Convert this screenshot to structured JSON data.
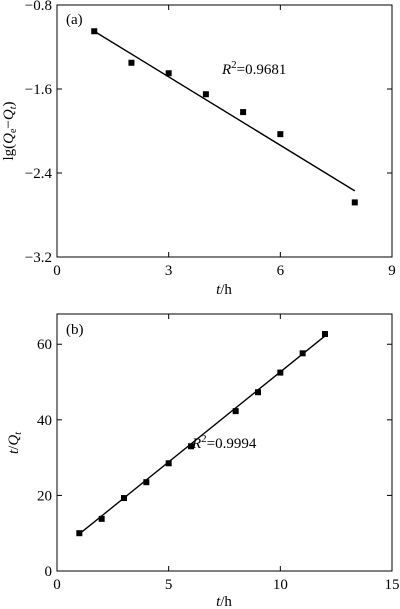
{
  "chart_data": [
    {
      "type": "scatter",
      "panel_label": "(a)",
      "xlabel": "t/h",
      "xlabel_italic": "t",
      "xlabel_rest": "/h",
      "ylabel": "lg(Qe−Qt)",
      "ylabel_parts": {
        "prefix": "lg(",
        "q1": "Q",
        "sub1": "e",
        "minus": "−",
        "q2": "Q",
        "sub2": "t",
        "suffix": ")"
      },
      "xlim": [
        0,
        9
      ],
      "ylim": [
        -3.2,
        -0.8
      ],
      "xticks": [
        0,
        3,
        6,
        9
      ],
      "xtick_labels": [
        "0",
        "3",
        "6",
        "9"
      ],
      "yticks": [
        -3.2,
        -2.4,
        -1.6,
        -0.8
      ],
      "ytick_labels": [
        "−3.2",
        "−2.4",
        "−1.6",
        "−0.8"
      ],
      "annotation": {
        "r2_italic": "R",
        "r2_sup": "2",
        "r2_value": "=0.9681"
      },
      "series": [
        {
          "marker": "square",
          "points": [
            {
              "x": 1,
              "y": -1.05
            },
            {
              "x": 2,
              "y": -1.35
            },
            {
              "x": 3,
              "y": -1.45
            },
            {
              "x": 4,
              "y": -1.65
            },
            {
              "x": 5,
              "y": -1.82
            },
            {
              "x": 6,
              "y": -2.03
            },
            {
              "x": 8,
              "y": -2.68
            }
          ]
        }
      ],
      "fit_line": {
        "x": [
          1,
          8
        ],
        "y": [
          -1.05,
          -2.57
        ]
      },
      "grid": false,
      "color": "#000000"
    },
    {
      "type": "scatter",
      "panel_label": "(b)",
      "xlabel": "t/h",
      "xlabel_italic": "t",
      "xlabel_rest": "/h",
      "ylabel": "t/Qt",
      "ylabel_parts": {
        "t": "t",
        "slash": "/",
        "q": "Q",
        "sub": "t"
      },
      "xlim": [
        0,
        15
      ],
      "ylim": [
        0,
        68
      ],
      "xticks": [
        0,
        5,
        10,
        15
      ],
      "xtick_labels": [
        "0",
        "5",
        "10",
        "15"
      ],
      "yticks": [
        0,
        20,
        40,
        60
      ],
      "ytick_labels": [
        "0",
        "20",
        "40",
        "60"
      ],
      "annotation": {
        "r2_italic": "R",
        "r2_sup": "2",
        "r2_value": "=0.9994"
      },
      "series": [
        {
          "marker": "square",
          "points": [
            {
              "x": 1,
              "y": 10
            },
            {
              "x": 2,
              "y": 13.8
            },
            {
              "x": 3,
              "y": 19.3
            },
            {
              "x": 4,
              "y": 23.5
            },
            {
              "x": 5,
              "y": 28.5
            },
            {
              "x": 6,
              "y": 33
            },
            {
              "x": 8,
              "y": 42.3
            },
            {
              "x": 9,
              "y": 47.3
            },
            {
              "x": 10,
              "y": 52.5
            },
            {
              "x": 11,
              "y": 57.6
            },
            {
              "x": 12,
              "y": 62.7
            }
          ]
        }
      ],
      "fit_line": {
        "x": [
          1,
          12
        ],
        "y": [
          9.8,
          62.2
        ]
      },
      "grid": false,
      "color": "#000000"
    }
  ]
}
